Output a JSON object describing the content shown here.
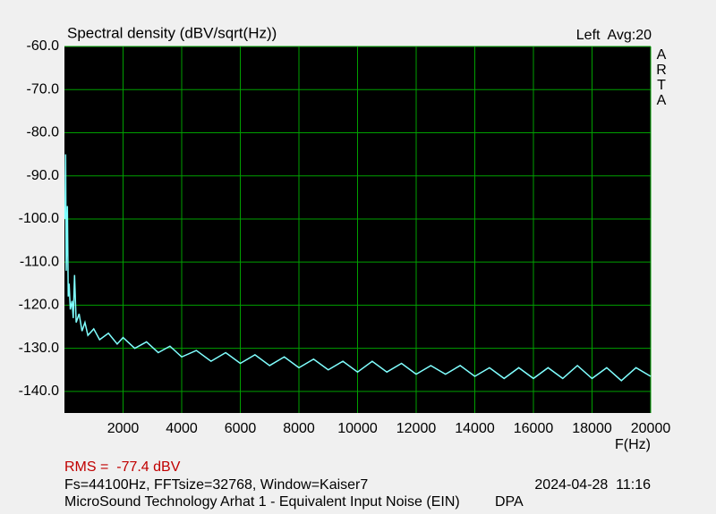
{
  "chart_data": {
    "type": "line",
    "title": "Spectral density (dBV/sqrt(Hz))",
    "channel_info": "Left  Avg:20",
    "logo": [
      "A",
      "R",
      "T",
      "A"
    ],
    "x_label": "F(Hz)",
    "rms": "RMS =  -77.4 dBV",
    "settings": "Fs=44100Hz, FFTsize=32768, Window=Kaiser7",
    "timestamp": "2024-04-28  11:16",
    "description": "MicroSound Technology Arhat 1 - Equivalent Input Noise (EIN)",
    "microphone": "DPA",
    "color": "#80ffff",
    "grid": true,
    "grid_color": "#00a000",
    "xlim": [
      0,
      20000
    ],
    "xticks": [
      2000,
      4000,
      6000,
      8000,
      10000,
      12000,
      14000,
      16000,
      18000,
      20000
    ],
    "ylim": [
      -145,
      -60
    ],
    "yticks": [
      {
        "value": -60,
        "label": "-60.0"
      },
      {
        "value": -70,
        "label": "-70.0"
      },
      {
        "value": -80,
        "label": "-80.0"
      },
      {
        "value": -90,
        "label": "-90.0"
      },
      {
        "value": -100,
        "label": "-100.0"
      },
      {
        "value": -110,
        "label": "-110.0"
      },
      {
        "value": -120,
        "label": "-120.0"
      },
      {
        "value": -130,
        "label": "-130.0"
      },
      {
        "value": -140,
        "label": "-140.0"
      }
    ],
    "x": [
      20,
      40,
      60,
      80,
      100,
      130,
      160,
      200,
      260,
      300,
      345,
      400,
      500,
      600,
      700,
      800,
      1000,
      1200,
      1500,
      1800,
      2000,
      2400,
      2800,
      3200,
      3600,
      4000,
      4500,
      5000,
      5500,
      6000,
      6500,
      7000,
      7500,
      8000,
      8500,
      9000,
      9500,
      10000,
      10500,
      11000,
      11500,
      12000,
      12500,
      13000,
      13500,
      14000,
      14500,
      15000,
      15500,
      16000,
      16500,
      17000,
      17500,
      18000,
      18500,
      19000,
      19500,
      20000
    ],
    "values": [
      -100,
      -85,
      -112,
      -105,
      -97,
      -118,
      -115,
      -121,
      -119,
      -123,
      -113,
      -124,
      -122,
      -126,
      -124,
      -127,
      -125.5,
      -128,
      -126.5,
      -129,
      -127.5,
      -130,
      -128.5,
      -131,
      -129.5,
      -132,
      -130.5,
      -133,
      -131,
      -133.5,
      -131.5,
      -134,
      -132,
      -134.5,
      -132.5,
      -135,
      -133,
      -135.5,
      -133,
      -135.5,
      -133.5,
      -136,
      -134,
      -136,
      -134,
      -136.5,
      -134.5,
      -137,
      -134.5,
      -137,
      -134.5,
      -137,
      -134,
      -137,
      -134.5,
      -137.5,
      -134.5,
      -136.5
    ]
  }
}
